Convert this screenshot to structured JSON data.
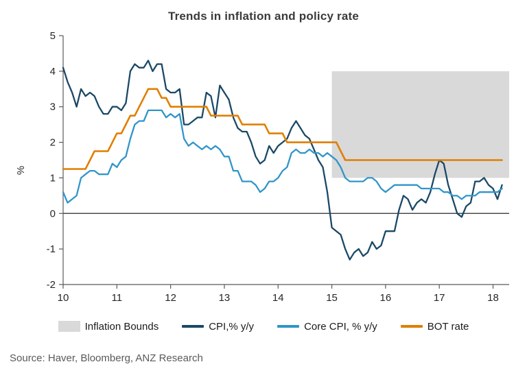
{
  "title": "Trends in inflation and policy rate",
  "source": "Source: Haver, Bloomberg, ANZ Research",
  "chart_data": {
    "type": "line",
    "title": "Trends in inflation and policy rate",
    "xlabel": "",
    "ylabel": "%",
    "xlim": [
      10,
      18.3
    ],
    "ylim": [
      -2,
      5
    ],
    "x_ticks": [
      10,
      11,
      12,
      13,
      14,
      15,
      16,
      17,
      18
    ],
    "y_ticks": [
      -2,
      -1,
      0,
      1,
      2,
      3,
      4,
      5
    ],
    "grid": false,
    "legend_position": "bottom",
    "x_start": 10.0,
    "x_step": 0.0833333,
    "bounds": {
      "label": "Inflation Bounds",
      "x_from": 15.0,
      "x_to": 18.3,
      "y_from": 1.0,
      "y_to": 4.0,
      "color": "#d9d9d9"
    },
    "series": [
      {
        "name": "CPI,% y/y",
        "color": "#1a4866",
        "width": 2.3,
        "values": [
          4.1,
          3.7,
          3.4,
          3.0,
          3.5,
          3.3,
          3.4,
          3.3,
          3.0,
          2.8,
          2.8,
          3.0,
          3.0,
          2.9,
          3.1,
          4.0,
          4.2,
          4.1,
          4.1,
          4.3,
          4.0,
          4.2,
          4.2,
          3.5,
          3.4,
          3.4,
          3.5,
          2.5,
          2.5,
          2.6,
          2.7,
          2.7,
          3.4,
          3.3,
          2.7,
          3.6,
          3.4,
          3.2,
          2.7,
          2.4,
          2.3,
          2.3,
          2.0,
          1.6,
          1.4,
          1.5,
          1.9,
          1.7,
          1.9,
          2.0,
          2.1,
          2.4,
          2.6,
          2.4,
          2.2,
          2.1,
          1.8,
          1.5,
          1.3,
          0.6,
          -0.4,
          -0.5,
          -0.6,
          -1.0,
          -1.3,
          -1.1,
          -1.0,
          -1.2,
          -1.1,
          -0.8,
          -1.0,
          -0.9,
          -0.5,
          -0.5,
          -0.5,
          0.1,
          0.5,
          0.4,
          0.1,
          0.3,
          0.4,
          0.3,
          0.6,
          1.1,
          1.5,
          1.4,
          0.8,
          0.4,
          0.0,
          -0.1,
          0.2,
          0.3,
          0.9,
          0.9,
          1.0,
          0.8,
          0.7,
          0.4,
          0.8
        ]
      },
      {
        "name": "Core CPI, % y/y",
        "color": "#3095c9",
        "width": 2.3,
        "values": [
          0.6,
          0.3,
          0.4,
          0.5,
          1.0,
          1.1,
          1.2,
          1.2,
          1.1,
          1.1,
          1.1,
          1.4,
          1.3,
          1.5,
          1.6,
          2.1,
          2.5,
          2.6,
          2.6,
          2.9,
          2.9,
          2.9,
          2.9,
          2.7,
          2.8,
          2.7,
          2.8,
          2.1,
          1.9,
          2.0,
          1.9,
          1.8,
          1.9,
          1.8,
          1.9,
          1.8,
          1.6,
          1.6,
          1.2,
          1.2,
          0.9,
          0.9,
          0.9,
          0.8,
          0.6,
          0.7,
          0.9,
          0.9,
          1.0,
          1.2,
          1.3,
          1.7,
          1.8,
          1.7,
          1.7,
          1.8,
          1.7,
          1.7,
          1.6,
          1.7,
          1.6,
          1.5,
          1.3,
          1.0,
          0.9,
          0.9,
          0.9,
          0.9,
          1.0,
          1.0,
          0.9,
          0.7,
          0.6,
          0.7,
          0.8,
          0.8,
          0.8,
          0.8,
          0.8,
          0.8,
          0.7,
          0.7,
          0.7,
          0.7,
          0.7,
          0.6,
          0.6,
          0.5,
          0.5,
          0.4,
          0.5,
          0.5,
          0.5,
          0.6,
          0.6,
          0.6,
          0.6,
          0.6,
          0.7
        ]
      },
      {
        "name": "BOT rate",
        "color": "#e07f00",
        "width": 2.6,
        "values": [
          1.25,
          1.25,
          1.25,
          1.25,
          1.25,
          1.25,
          1.5,
          1.75,
          1.75,
          1.75,
          1.75,
          2.0,
          2.25,
          2.25,
          2.5,
          2.75,
          2.75,
          3.0,
          3.25,
          3.5,
          3.5,
          3.5,
          3.25,
          3.25,
          3.0,
          3.0,
          3.0,
          3.0,
          3.0,
          3.0,
          3.0,
          3.0,
          3.0,
          2.75,
          2.75,
          2.75,
          2.75,
          2.75,
          2.75,
          2.75,
          2.5,
          2.5,
          2.5,
          2.5,
          2.5,
          2.5,
          2.25,
          2.25,
          2.25,
          2.25,
          2.0,
          2.0,
          2.0,
          2.0,
          2.0,
          2.0,
          2.0,
          2.0,
          2.0,
          2.0,
          2.0,
          2.0,
          1.75,
          1.5,
          1.5,
          1.5,
          1.5,
          1.5,
          1.5,
          1.5,
          1.5,
          1.5,
          1.5,
          1.5,
          1.5,
          1.5,
          1.5,
          1.5,
          1.5,
          1.5,
          1.5,
          1.5,
          1.5,
          1.5,
          1.5,
          1.5,
          1.5,
          1.5,
          1.5,
          1.5,
          1.5,
          1.5,
          1.5,
          1.5,
          1.5,
          1.5,
          1.5,
          1.5,
          1.5
        ]
      }
    ]
  }
}
